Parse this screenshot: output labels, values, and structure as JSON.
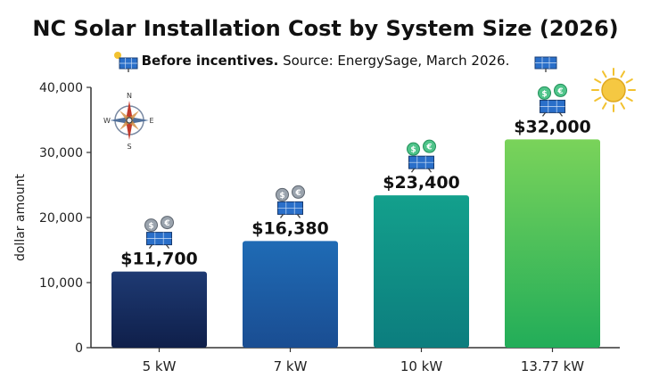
{
  "title": "NC Solar Installation Cost by System Size (2026)",
  "subtitle": {
    "emphasis": "Before incentives.",
    "text": "Source: EnergySage, March 2026."
  },
  "compass": {
    "n": "N",
    "s": "S",
    "e": "E",
    "w": "W"
  },
  "icons": {
    "bar_icon": "money-coins-solar-panel-icon",
    "decor": [
      "sun-icon",
      "solar-panel-icon",
      "compass-rose-icon"
    ],
    "coin_symbols": [
      "$",
      "€"
    ]
  },
  "colors": {
    "bars": [
      [
        "#1e3a73",
        "#0f1f4a"
      ],
      [
        "#1f6bb5",
        "#1a4d92"
      ],
      [
        "#13a08c",
        "#0c7d7e"
      ],
      [
        "#7ad35a",
        "#22ad59"
      ]
    ],
    "axis": "#333333",
    "sun": "#f2c230"
  },
  "chart_data": {
    "type": "bar",
    "title": "NC Solar Installation Cost by System Size (2026)",
    "subtitle": "Before incentives. Source: EnergySage, March 2026.",
    "categories": [
      "5 kW",
      "7 kW",
      "10 kW",
      "13.77 kW"
    ],
    "values": [
      11700,
      16380,
      23400,
      32000
    ],
    "data_labels": [
      "$11,700",
      "$16,380",
      "$23,400",
      "$32,000"
    ],
    "xlabel": "",
    "ylabel": "dollar amount",
    "ylim": [
      0,
      40000
    ],
    "yticks": [
      0,
      10000,
      20000,
      30000,
      40000
    ],
    "ytick_labels": [
      "0",
      "10,000",
      "20,000",
      "30,000",
      "40,000"
    ],
    "grid": false,
    "legend": "none"
  }
}
